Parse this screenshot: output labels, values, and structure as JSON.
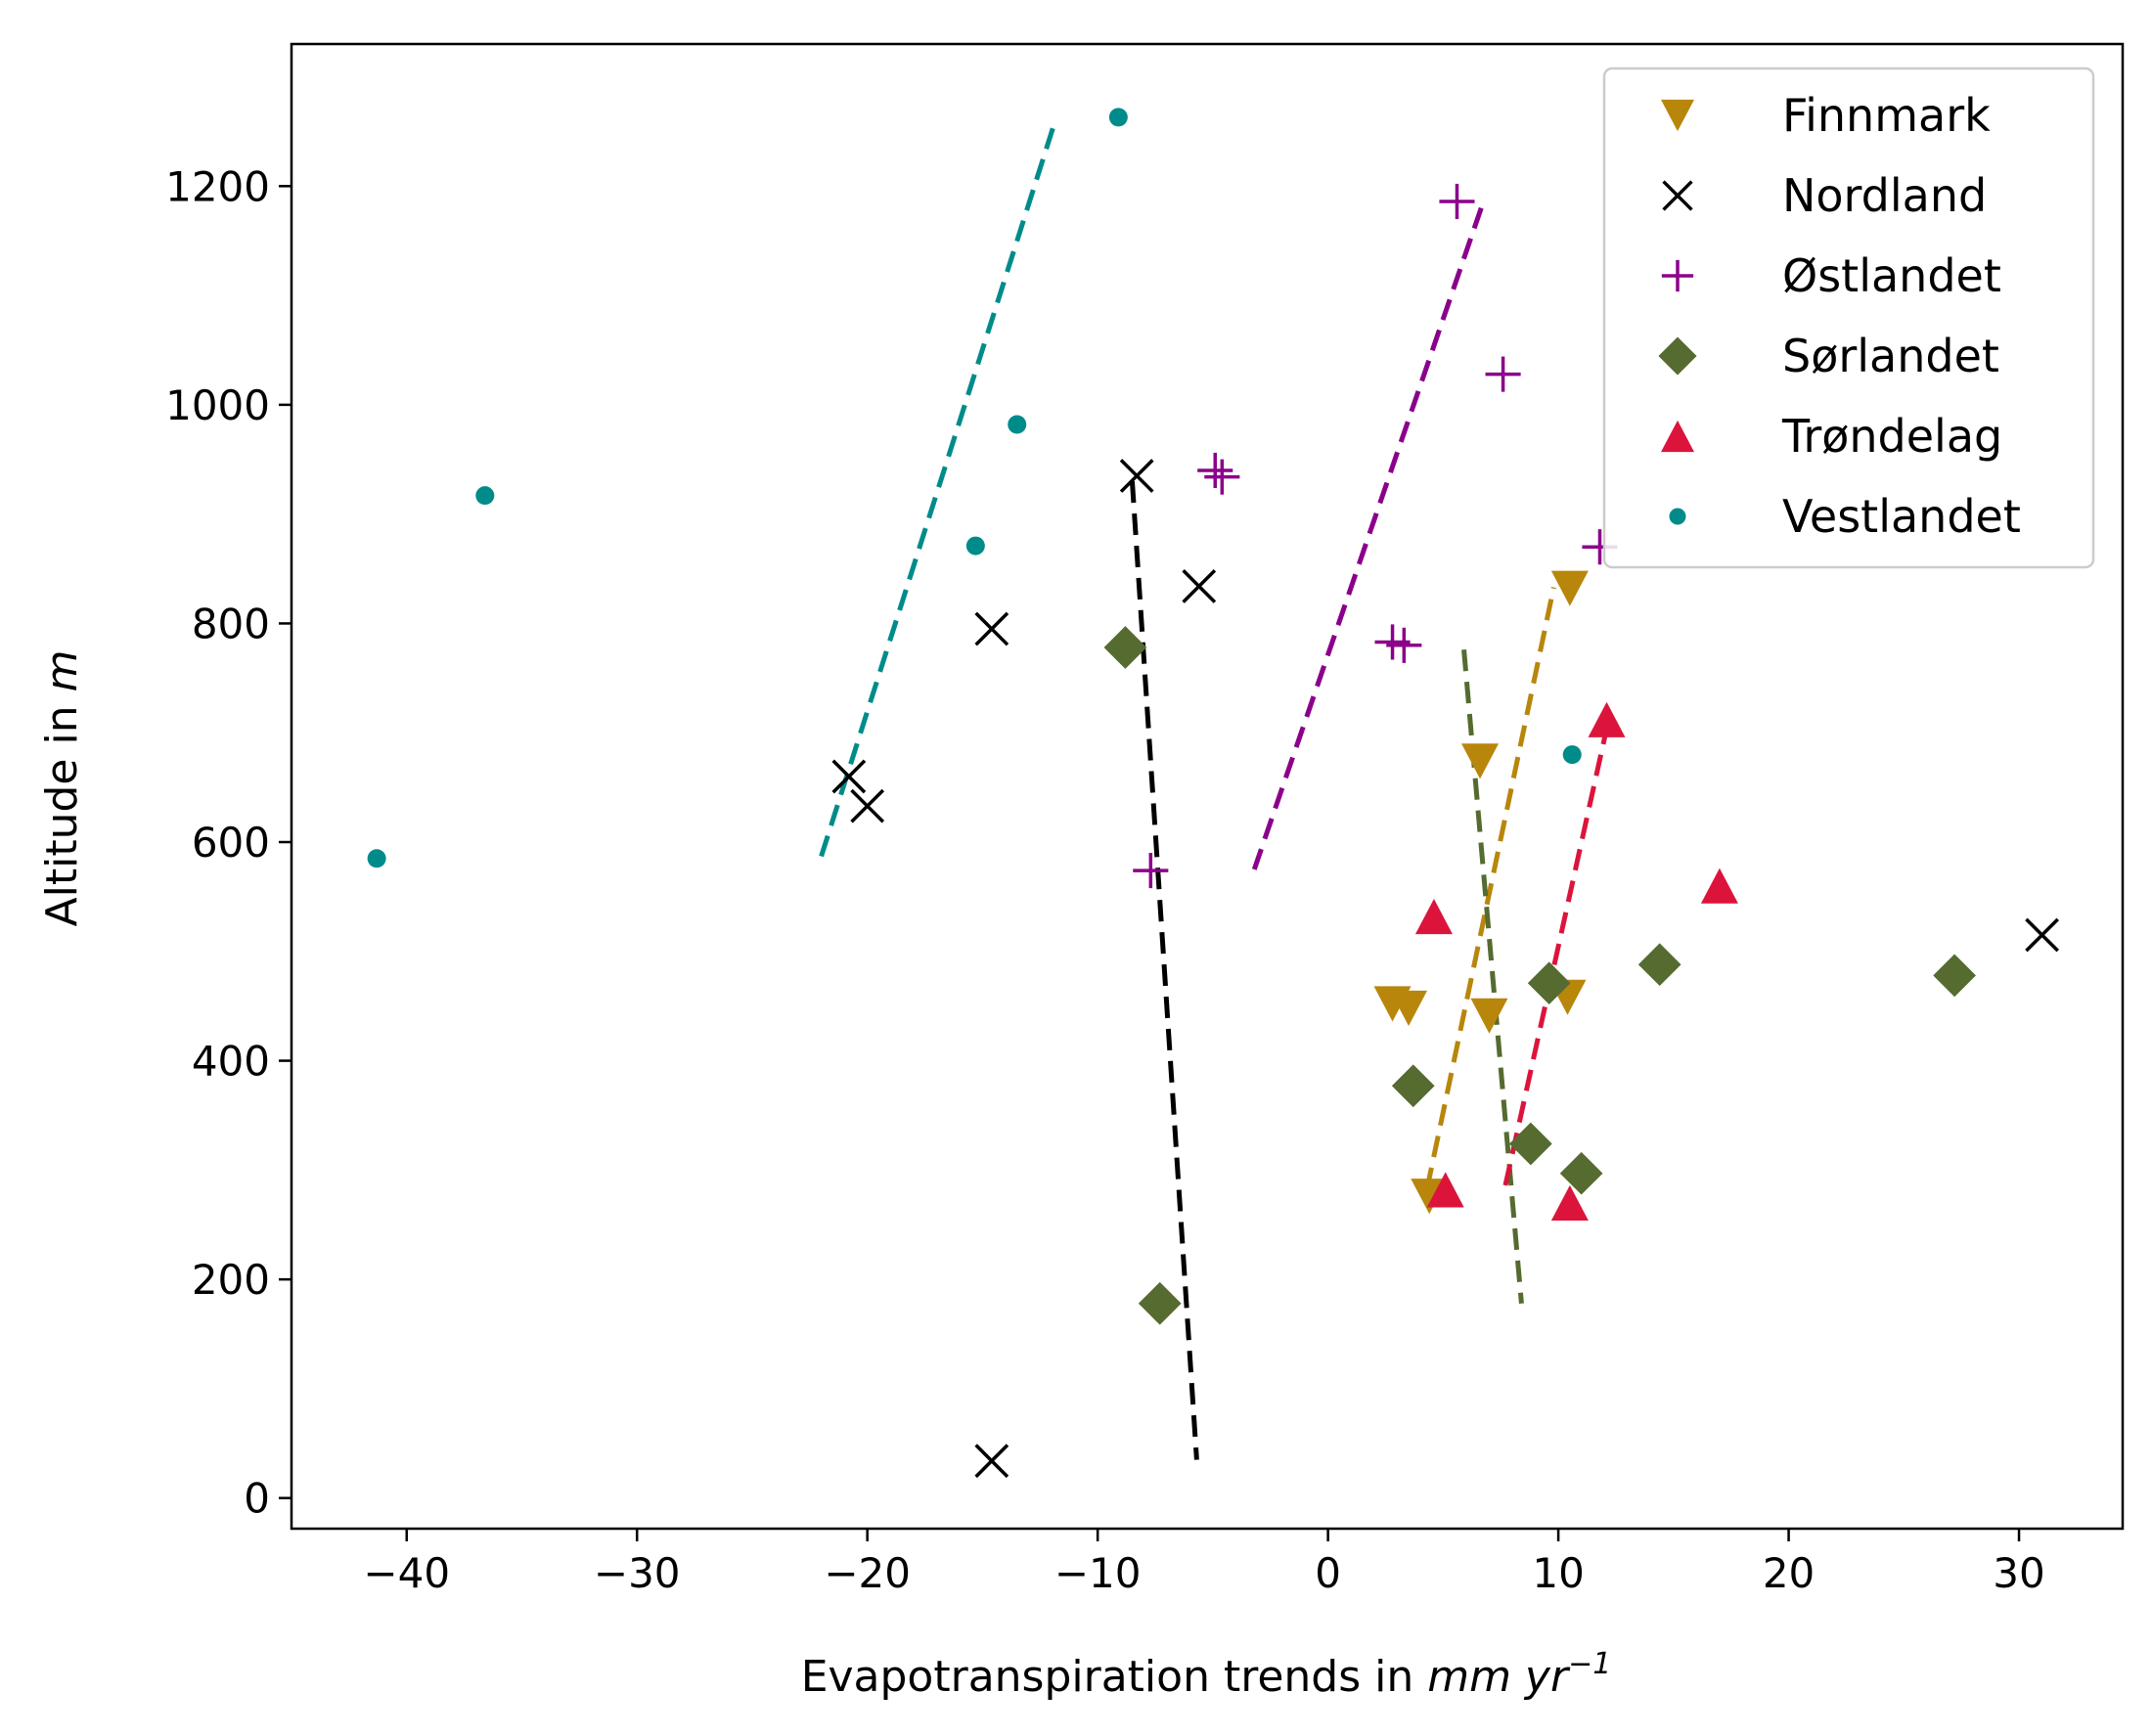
{
  "chart_data": {
    "type": "scatter",
    "title": "",
    "xlabel": {
      "prefix": "Evapotranspiration trends in ",
      "unit": "mm yr",
      "exponent": "−1"
    },
    "ylabel": {
      "prefix": "Altitude in ",
      "unit": "m"
    },
    "xlim": [
      -45,
      34.5
    ],
    "ylim": [
      -28,
      1330
    ],
    "x_ticks": [
      -40,
      -30,
      -20,
      -10,
      0,
      10,
      20,
      30
    ],
    "x_tick_labels": [
      "−40",
      "−30",
      "−20",
      "−10",
      "0",
      "10",
      "20",
      "30"
    ],
    "y_ticks": [
      0,
      200,
      400,
      600,
      800,
      1000,
      1200
    ],
    "y_tick_labels": [
      "0",
      "200",
      "400",
      "600",
      "800",
      "1000",
      "1200"
    ],
    "grid": false,
    "legend_position": "top-right",
    "series": [
      {
        "name": "Finnmark",
        "marker": "triangle-down",
        "color": "#b8860b",
        "points": [
          [
            10.5,
            832
          ],
          [
            6.6,
            674
          ],
          [
            2.8,
            452
          ],
          [
            3.5,
            448
          ],
          [
            7.0,
            441
          ],
          [
            10.4,
            458
          ],
          [
            4.4,
            276
          ]
        ],
        "trend": [
          [
            4.3,
            283
          ],
          [
            9.8,
            833
          ]
        ]
      },
      {
        "name": "Nordland",
        "marker": "x",
        "color": "#000000",
        "points": [
          [
            -8.3,
            935
          ],
          [
            -5.6,
            834
          ],
          [
            -14.6,
            795
          ],
          [
            -20.8,
            660
          ],
          [
            -20.0,
            633
          ],
          [
            31.0,
            515
          ],
          [
            -14.6,
            34
          ]
        ],
        "trend": [
          [
            -8.5,
            930
          ],
          [
            -5.7,
            35
          ]
        ]
      },
      {
        "name": "Østlandet",
        "marker": "plus",
        "color": "#8b008b",
        "points": [
          [
            5.6,
            1186
          ],
          [
            7.6,
            1028
          ],
          [
            -4.9,
            940
          ],
          [
            -4.6,
            934
          ],
          [
            11.8,
            870
          ],
          [
            2.8,
            783
          ],
          [
            3.3,
            780
          ],
          [
            -7.7,
            574
          ]
        ],
        "trend": [
          [
            -3.2,
            575
          ],
          [
            6.7,
            1183
          ]
        ]
      },
      {
        "name": "Sørlandet",
        "marker": "diamond",
        "color": "#556b2f",
        "points": [
          [
            -8.8,
            778
          ],
          [
            14.4,
            488
          ],
          [
            27.2,
            478
          ],
          [
            9.6,
            471
          ],
          [
            3.7,
            377
          ],
          [
            8.8,
            324
          ],
          [
            11.0,
            297
          ],
          [
            -7.3,
            178
          ]
        ],
        "trend": [
          [
            5.9,
            776
          ],
          [
            8.4,
            178
          ]
        ]
      },
      {
        "name": "Trøndelag",
        "marker": "triangle-up",
        "color": "#dc143c",
        "points": [
          [
            12.1,
            712
          ],
          [
            17.0,
            560
          ],
          [
            4.6,
            532
          ],
          [
            5.1,
            282
          ],
          [
            10.5,
            270
          ]
        ],
        "trend": [
          [
            7.7,
            286
          ],
          [
            12.1,
            704
          ]
        ]
      },
      {
        "name": "Vestlandet",
        "marker": "dot",
        "color": "#008b8b",
        "points": [
          [
            -9.1,
            1263
          ],
          [
            -13.5,
            982
          ],
          [
            -36.6,
            917
          ],
          [
            -15.3,
            871
          ],
          [
            10.6,
            680
          ],
          [
            -41.3,
            585
          ]
        ],
        "trend": [
          [
            -22.0,
            587
          ],
          [
            -11.9,
            1256
          ]
        ]
      }
    ]
  }
}
